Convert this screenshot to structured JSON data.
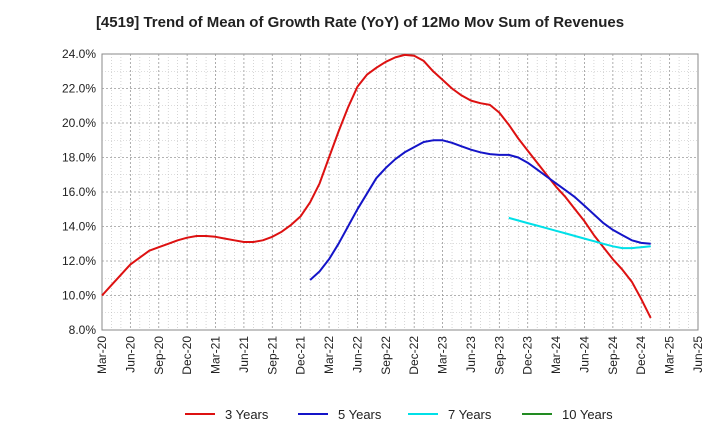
{
  "chart_data": {
    "type": "line",
    "title": "[4519]  Trend of Mean of Growth Rate (YoY) of 12Mo Mov Sum of Revenues",
    "xlabel": "",
    "ylabel": "",
    "ylim": [
      8.0,
      24.0
    ],
    "y_ticks": [
      8.0,
      10.0,
      12.0,
      14.0,
      16.0,
      18.0,
      20.0,
      22.0,
      24.0
    ],
    "y_tick_labels": [
      "8.0%",
      "10.0%",
      "12.0%",
      "14.0%",
      "16.0%",
      "18.0%",
      "20.0%",
      "22.0%",
      "24.0%"
    ],
    "x_tick_labels": [
      "Mar-20",
      "Jun-20",
      "Sep-20",
      "Dec-20",
      "Mar-21",
      "Jun-21",
      "Sep-21",
      "Dec-21",
      "Mar-22",
      "Jun-22",
      "Sep-22",
      "Dec-22",
      "Mar-23",
      "Jun-23",
      "Sep-23",
      "Dec-23",
      "Mar-24",
      "Jun-24",
      "Sep-24",
      "Dec-24",
      "Mar-25",
      "Jun-25"
    ],
    "grid": true,
    "legend_position": "bottom",
    "series": [
      {
        "name": "3 Years",
        "color": "#dd1111",
        "values": [
          10.0,
          10.6,
          11.2,
          11.8,
          12.2,
          12.6,
          12.8,
          13.0,
          13.2,
          13.35,
          13.45,
          13.45,
          13.4,
          13.3,
          13.2,
          13.1,
          13.1,
          13.2,
          13.4,
          13.7,
          14.1,
          14.6,
          15.4,
          16.5,
          18.0,
          19.5,
          20.9,
          22.1,
          22.8,
          23.2,
          23.55,
          23.8,
          23.95,
          23.9,
          23.6,
          23.0,
          22.5,
          22.0,
          21.6,
          21.3,
          21.15,
          21.05,
          20.6,
          19.9,
          19.1,
          18.4,
          17.7,
          17.0,
          16.3,
          15.7,
          15.0,
          14.3,
          13.5,
          12.8,
          12.1,
          11.5,
          10.8,
          9.8,
          8.7
        ]
      },
      {
        "name": "5 Years",
        "color": "#1414c8",
        "values": [
          null,
          null,
          null,
          null,
          null,
          null,
          null,
          null,
          null,
          null,
          null,
          null,
          null,
          null,
          null,
          null,
          null,
          null,
          null,
          null,
          null,
          null,
          10.9,
          11.4,
          12.1,
          13.0,
          14.0,
          15.0,
          15.9,
          16.8,
          17.4,
          17.9,
          18.3,
          18.6,
          18.9,
          19.0,
          19.0,
          18.85,
          18.65,
          18.45,
          18.3,
          18.2,
          18.15,
          18.15,
          18.0,
          17.7,
          17.3,
          16.9,
          16.5,
          16.1,
          15.7,
          15.2,
          14.7,
          14.2,
          13.8,
          13.5,
          13.2,
          13.05,
          13.0
        ]
      },
      {
        "name": "7 Years",
        "color": "#00e0e8",
        "values": [
          null,
          null,
          null,
          null,
          null,
          null,
          null,
          null,
          null,
          null,
          null,
          null,
          null,
          null,
          null,
          null,
          null,
          null,
          null,
          null,
          null,
          null,
          null,
          null,
          null,
          null,
          null,
          null,
          null,
          null,
          null,
          null,
          null,
          null,
          null,
          null,
          null,
          null,
          null,
          null,
          null,
          null,
          null,
          14.5,
          14.35,
          14.2,
          14.05,
          13.9,
          13.75,
          13.6,
          13.45,
          13.3,
          13.15,
          13.0,
          12.85,
          12.75,
          12.75,
          12.8,
          12.85
        ]
      },
      {
        "name": "10 Years",
        "color": "#228b22",
        "values": []
      }
    ]
  }
}
